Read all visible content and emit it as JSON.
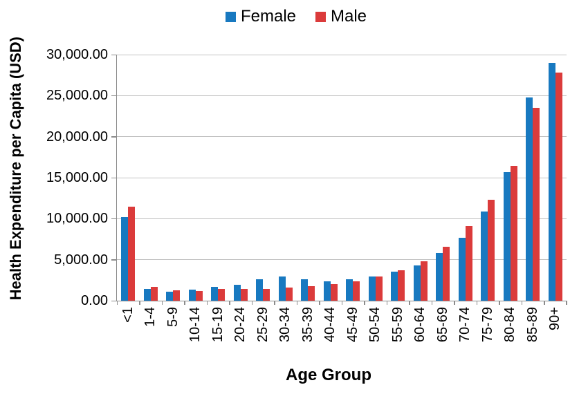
{
  "chart_data": {
    "type": "bar",
    "title": "",
    "xlabel": "Age Group",
    "ylabel": "Health Expenditure per Capita (USD)",
    "categories": [
      "<1",
      "1-4",
      "5-9",
      "10-14",
      "15-19",
      "20-24",
      "25-29",
      "30-34",
      "35-39",
      "40-44",
      "45-49",
      "50-54",
      "55-59",
      "60-64",
      "65-69",
      "70-74",
      "75-79",
      "80-84",
      "85-89",
      "90+"
    ],
    "series": [
      {
        "name": "Female",
        "color": "#1879C0",
        "values": [
          10200,
          1400,
          1100,
          1350,
          1700,
          1900,
          2600,
          2950,
          2600,
          2350,
          2600,
          2950,
          3500,
          4300,
          5800,
          7700,
          10900,
          15700,
          24800,
          29000
        ]
      },
      {
        "name": "Male",
        "color": "#DB3B3B",
        "values": [
          11450,
          1650,
          1250,
          1150,
          1400,
          1400,
          1450,
          1600,
          1800,
          2000,
          2400,
          2950,
          3750,
          4800,
          6600,
          9100,
          12300,
          16450,
          23550,
          27850
        ]
      }
    ],
    "ylim": [
      0,
      30000
    ],
    "y_ticks": [
      "0.00",
      "5,000.00",
      "10,000.00",
      "15,000.00",
      "20,000.00",
      "25,000.00",
      "30,000.00"
    ],
    "grid": true,
    "legend_position": "top-center"
  },
  "colors": {
    "female_bar": "#1879C0",
    "male_bar": "#DB3B3B",
    "gridline": "#C1C1C1",
    "axis_line": "#8C8C8C",
    "text": "#000000",
    "background": "#FFFFFF"
  }
}
